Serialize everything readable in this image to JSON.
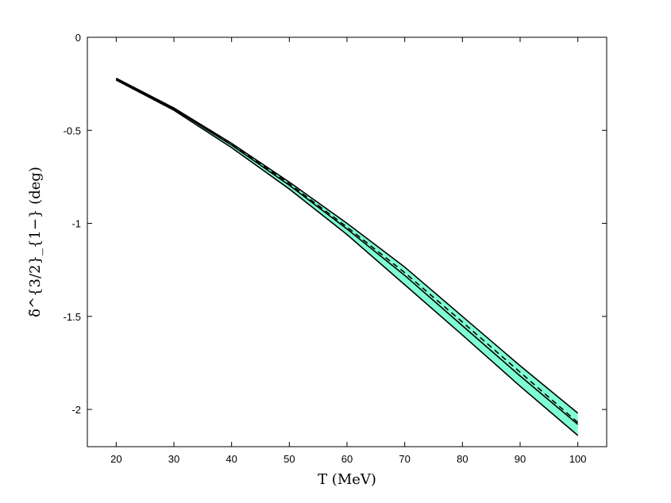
{
  "chart_data": {
    "type": "line",
    "xlabel": "T (MeV)",
    "ylabel": "δ̃^{3/2}_{1−} (deg)",
    "xlim": [
      15,
      105
    ],
    "ylim": [
      -2.2,
      0
    ],
    "xticks": [
      20,
      30,
      40,
      50,
      60,
      70,
      80,
      90,
      100
    ],
    "yticks": [
      0,
      -0.5,
      -1,
      -1.5,
      -2
    ],
    "ytick_labels": [
      "0",
      "-0.5",
      "-1",
      "-1.5",
      "-2"
    ],
    "grid": false,
    "legend": "none",
    "band_color": "#7fffd4",
    "x": [
      20,
      30,
      40,
      50,
      60,
      70,
      80,
      90,
      100
    ],
    "band_lower": [
      -0.23,
      -0.392,
      -0.593,
      -0.815,
      -1.06,
      -1.33,
      -1.6,
      -1.875,
      -2.14
    ],
    "band_upper": [
      -0.22,
      -0.38,
      -0.57,
      -0.778,
      -1.0,
      -1.235,
      -1.5,
      -1.765,
      -2.02
    ],
    "central": [
      -0.225,
      -0.385,
      -0.58,
      -0.795,
      -1.03,
      -1.28,
      -1.55,
      -1.82,
      -2.08
    ],
    "dashed": [
      -0.225,
      -0.383,
      -0.575,
      -0.787,
      -1.02,
      -1.265,
      -1.53,
      -1.8,
      -2.07
    ]
  }
}
